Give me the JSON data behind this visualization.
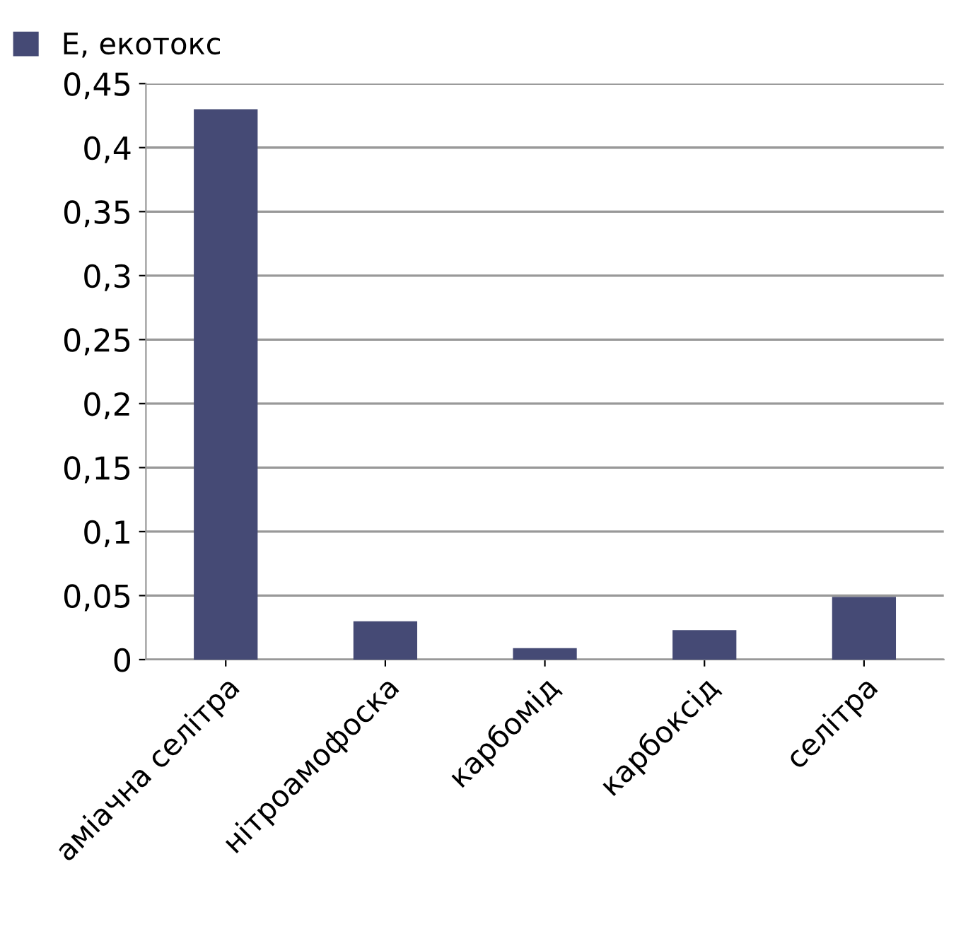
{
  "chart_data": {
    "type": "bar",
    "categories": [
      "аміачна селітра",
      "нітроамофоска",
      "карбомід",
      "карбоксід",
      "селітра"
    ],
    "series": [
      {
        "name": "Е, екотокс",
        "color": "#454a75",
        "values": [
          0.43,
          0.03,
          0.009,
          0.023,
          0.049
        ]
      }
    ],
    "ylim": [
      0,
      0.45
    ],
    "yticks": [
      0,
      {
        "value": 0.05,
        "label": "0,05"
      },
      {
        "value": 0.1,
        "label": "0,1"
      },
      {
        "value": 0.15,
        "label": "0,15"
      },
      {
        "value": 0.2,
        "label": "0,2"
      },
      {
        "value": 0.25,
        "label": "0,25"
      },
      {
        "value": 0.3,
        "label": "0,3"
      },
      {
        "value": 0.35,
        "label": "0,35"
      },
      {
        "value": 0.4,
        "label": "0,4"
      },
      {
        "value": 0.45,
        "label": "0,45"
      }
    ],
    "grid": "y",
    "legend": "top left"
  }
}
